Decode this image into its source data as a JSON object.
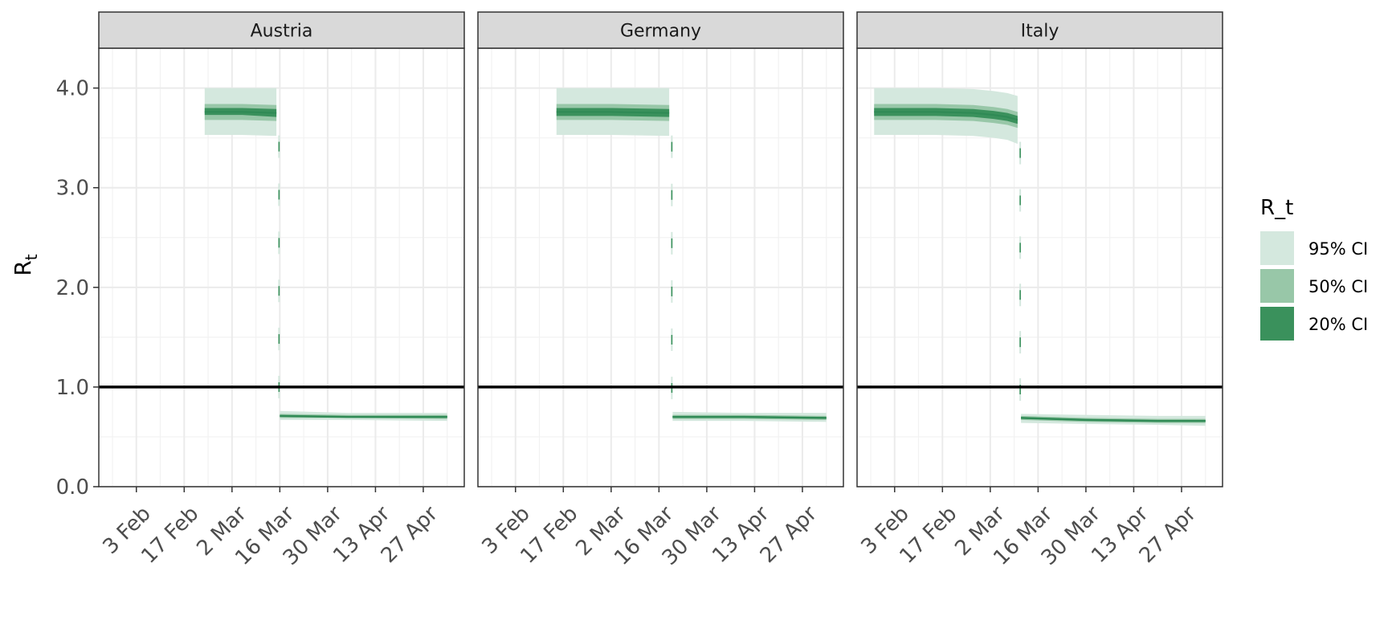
{
  "chart_data": {
    "type": "area",
    "ylabel_main": "R",
    "ylabel_sub": "t",
    "ylim": [
      0,
      4.4
    ],
    "yticks": [
      {
        "value": 0,
        "label": "0.0"
      },
      {
        "value": 1,
        "label": "1.0"
      },
      {
        "value": 2,
        "label": "2.0"
      },
      {
        "value": 3,
        "label": "3.0"
      },
      {
        "value": 4,
        "label": "4.0"
      }
    ],
    "reference_line": 1.0,
    "legend": {
      "title": "R_t",
      "position": "right",
      "items": [
        {
          "label": "95% CI",
          "color": "#d4e8de"
        },
        {
          "label": "50% CI",
          "color": "#98c7a8"
        },
        {
          "label": "20% CI",
          "color": "#3a915c"
        }
      ]
    },
    "colors": {
      "ci95": "#d4e8de",
      "ci50": "#98c7a8",
      "ci20": "#3a915c",
      "median": "#2f8a55"
    },
    "panels": [
      {
        "name": "Austria",
        "xlim": [
          "2020-01-23",
          "2020-05-09"
        ],
        "xticks": [
          {
            "date": "2020-02-03",
            "label": "3 Feb"
          },
          {
            "date": "2020-02-17",
            "label": "17 Feb"
          },
          {
            "date": "2020-03-02",
            "label": "2 Mar"
          },
          {
            "date": "2020-03-16",
            "label": "16 Mar"
          },
          {
            "date": "2020-03-30",
            "label": "30 Mar"
          },
          {
            "date": "2020-04-13",
            "label": "13 Apr"
          },
          {
            "date": "2020-04-27",
            "label": "27 Apr"
          }
        ],
        "segments": [
          {
            "points": [
              {
                "date": "2020-02-23",
                "mid": 3.76,
                "lo95": 3.53,
                "hi95": 4.0,
                "lo50": 3.68,
                "hi50": 3.84,
                "lo20": 3.73,
                "hi20": 3.8
              },
              {
                "date": "2020-03-05",
                "mid": 3.76,
                "lo95": 3.53,
                "hi95": 4.0,
                "lo50": 3.68,
                "hi50": 3.84,
                "lo20": 3.73,
                "hi20": 3.8
              },
              {
                "date": "2020-03-15",
                "mid": 3.75,
                "lo95": 3.52,
                "hi95": 4.0,
                "lo50": 3.67,
                "hi50": 3.83,
                "lo20": 3.71,
                "hi20": 3.79
              }
            ]
          },
          {
            "points": [
              {
                "date": "2020-03-16",
                "mid": 0.71,
                "lo95": 0.67,
                "hi95": 0.76,
                "lo50": 0.69,
                "hi50": 0.73,
                "lo20": 0.7,
                "hi20": 0.72
              },
              {
                "date": "2020-04-05",
                "mid": 0.7,
                "lo95": 0.67,
                "hi95": 0.74,
                "lo50": 0.69,
                "hi50": 0.72,
                "lo20": 0.69,
                "hi20": 0.71
              },
              {
                "date": "2020-05-04",
                "mid": 0.7,
                "lo95": 0.66,
                "hi95": 0.74,
                "lo50": 0.68,
                "hi50": 0.72,
                "lo20": 0.69,
                "hi20": 0.71
              }
            ]
          }
        ],
        "transition_date": "2020-03-16"
      },
      {
        "name": "Germany",
        "xlim": [
          "2020-01-23",
          "2020-05-09"
        ],
        "xticks": [
          {
            "date": "2020-02-03",
            "label": "3 Feb"
          },
          {
            "date": "2020-02-17",
            "label": "17 Feb"
          },
          {
            "date": "2020-03-02",
            "label": "2 Mar"
          },
          {
            "date": "2020-03-16",
            "label": "16 Mar"
          },
          {
            "date": "2020-03-30",
            "label": "30 Mar"
          },
          {
            "date": "2020-04-13",
            "label": "13 Apr"
          },
          {
            "date": "2020-04-27",
            "label": "27 Apr"
          }
        ],
        "segments": [
          {
            "points": [
              {
                "date": "2020-02-15",
                "mid": 3.76,
                "lo95": 3.53,
                "hi95": 4.0,
                "lo50": 3.68,
                "hi50": 3.84,
                "lo20": 3.72,
                "hi20": 3.8
              },
              {
                "date": "2020-03-02",
                "mid": 3.76,
                "lo95": 3.53,
                "hi95": 4.0,
                "lo50": 3.68,
                "hi50": 3.84,
                "lo20": 3.72,
                "hi20": 3.8
              },
              {
                "date": "2020-03-19",
                "mid": 3.75,
                "lo95": 3.52,
                "hi95": 4.0,
                "lo50": 3.67,
                "hi50": 3.83,
                "lo20": 3.71,
                "hi20": 3.79
              }
            ]
          },
          {
            "points": [
              {
                "date": "2020-03-20",
                "mid": 0.7,
                "lo95": 0.66,
                "hi95": 0.75,
                "lo50": 0.68,
                "hi50": 0.72,
                "lo20": 0.69,
                "hi20": 0.71
              },
              {
                "date": "2020-04-10",
                "mid": 0.7,
                "lo95": 0.66,
                "hi95": 0.74,
                "lo50": 0.68,
                "hi50": 0.72,
                "lo20": 0.69,
                "hi20": 0.71
              },
              {
                "date": "2020-05-04",
                "mid": 0.69,
                "lo95": 0.65,
                "hi95": 0.74,
                "lo50": 0.67,
                "hi50": 0.71,
                "lo20": 0.68,
                "hi20": 0.7
              }
            ]
          }
        ],
        "transition_date": "2020-03-20"
      },
      {
        "name": "Italy",
        "xlim": [
          "2020-01-23",
          "2020-05-09"
        ],
        "xticks": [
          {
            "date": "2020-02-03",
            "label": "3 Feb"
          },
          {
            "date": "2020-02-17",
            "label": "17 Feb"
          },
          {
            "date": "2020-03-02",
            "label": "2 Mar"
          },
          {
            "date": "2020-03-16",
            "label": "16 Mar"
          },
          {
            "date": "2020-03-30",
            "label": "30 Mar"
          },
          {
            "date": "2020-04-13",
            "label": "13 Apr"
          },
          {
            "date": "2020-04-27",
            "label": "27 Apr"
          }
        ],
        "segments": [
          {
            "points": [
              {
                "date": "2020-01-28",
                "mid": 3.76,
                "lo95": 3.53,
                "hi95": 4.0,
                "lo50": 3.68,
                "hi50": 3.84,
                "lo20": 3.72,
                "hi20": 3.8
              },
              {
                "date": "2020-02-15",
                "mid": 3.76,
                "lo95": 3.53,
                "hi95": 4.0,
                "lo50": 3.68,
                "hi50": 3.84,
                "lo20": 3.72,
                "hi20": 3.8
              },
              {
                "date": "2020-02-26",
                "mid": 3.75,
                "lo95": 3.52,
                "hi95": 3.99,
                "lo50": 3.67,
                "hi50": 3.83,
                "lo20": 3.71,
                "hi20": 3.79
              },
              {
                "date": "2020-03-03",
                "mid": 3.73,
                "lo95": 3.5,
                "hi95": 3.97,
                "lo50": 3.65,
                "hi50": 3.81,
                "lo20": 3.69,
                "hi20": 3.77
              },
              {
                "date": "2020-03-07",
                "mid": 3.71,
                "lo95": 3.48,
                "hi95": 3.95,
                "lo50": 3.63,
                "hi50": 3.79,
                "lo20": 3.67,
                "hi20": 3.75
              },
              {
                "date": "2020-03-10",
                "mid": 3.68,
                "lo95": 3.44,
                "hi95": 3.92,
                "lo50": 3.6,
                "hi50": 3.76,
                "lo20": 3.64,
                "hi20": 3.72
              }
            ]
          },
          {
            "points": [
              {
                "date": "2020-03-11",
                "mid": 0.69,
                "lo95": 0.64,
                "hi95": 0.73,
                "lo50": 0.67,
                "hi50": 0.71,
                "lo20": 0.68,
                "hi20": 0.7
              },
              {
                "date": "2020-03-30",
                "mid": 0.67,
                "lo95": 0.63,
                "hi95": 0.72,
                "lo50": 0.65,
                "hi50": 0.69,
                "lo20": 0.66,
                "hi20": 0.68
              },
              {
                "date": "2020-04-20",
                "mid": 0.66,
                "lo95": 0.62,
                "hi95": 0.71,
                "lo50": 0.64,
                "hi50": 0.68,
                "lo20": 0.65,
                "hi20": 0.67
              },
              {
                "date": "2020-05-04",
                "mid": 0.66,
                "lo95": 0.61,
                "hi95": 0.71,
                "lo50": 0.64,
                "hi50": 0.68,
                "lo20": 0.65,
                "hi20": 0.67
              }
            ]
          }
        ],
        "transition_date": "2020-03-11"
      }
    ]
  }
}
